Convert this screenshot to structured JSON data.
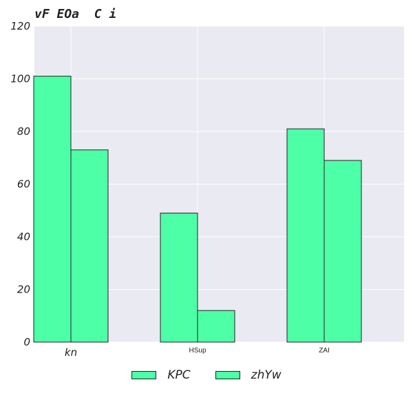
{
  "chart_data": {
    "type": "bar",
    "title": "vF EOa  C i",
    "xlabel": "",
    "ylabel": "",
    "categories": [
      "kn",
      "HSup",
      "ZAI"
    ],
    "series": [
      {
        "name": "KPC",
        "values": [
          101,
          49,
          81
        ],
        "color": "#4dffa6"
      },
      {
        "name": "zhYw",
        "values": [
          73,
          12,
          69
        ],
        "color": "#4dffa6"
      }
    ],
    "ylim": [
      0,
      120
    ],
    "yticks": [
      0,
      20,
      40,
      60,
      80,
      100,
      120
    ],
    "grid": true,
    "legend": "bottom-center",
    "background": "#eaeaf2",
    "edge_color": "#222222"
  }
}
